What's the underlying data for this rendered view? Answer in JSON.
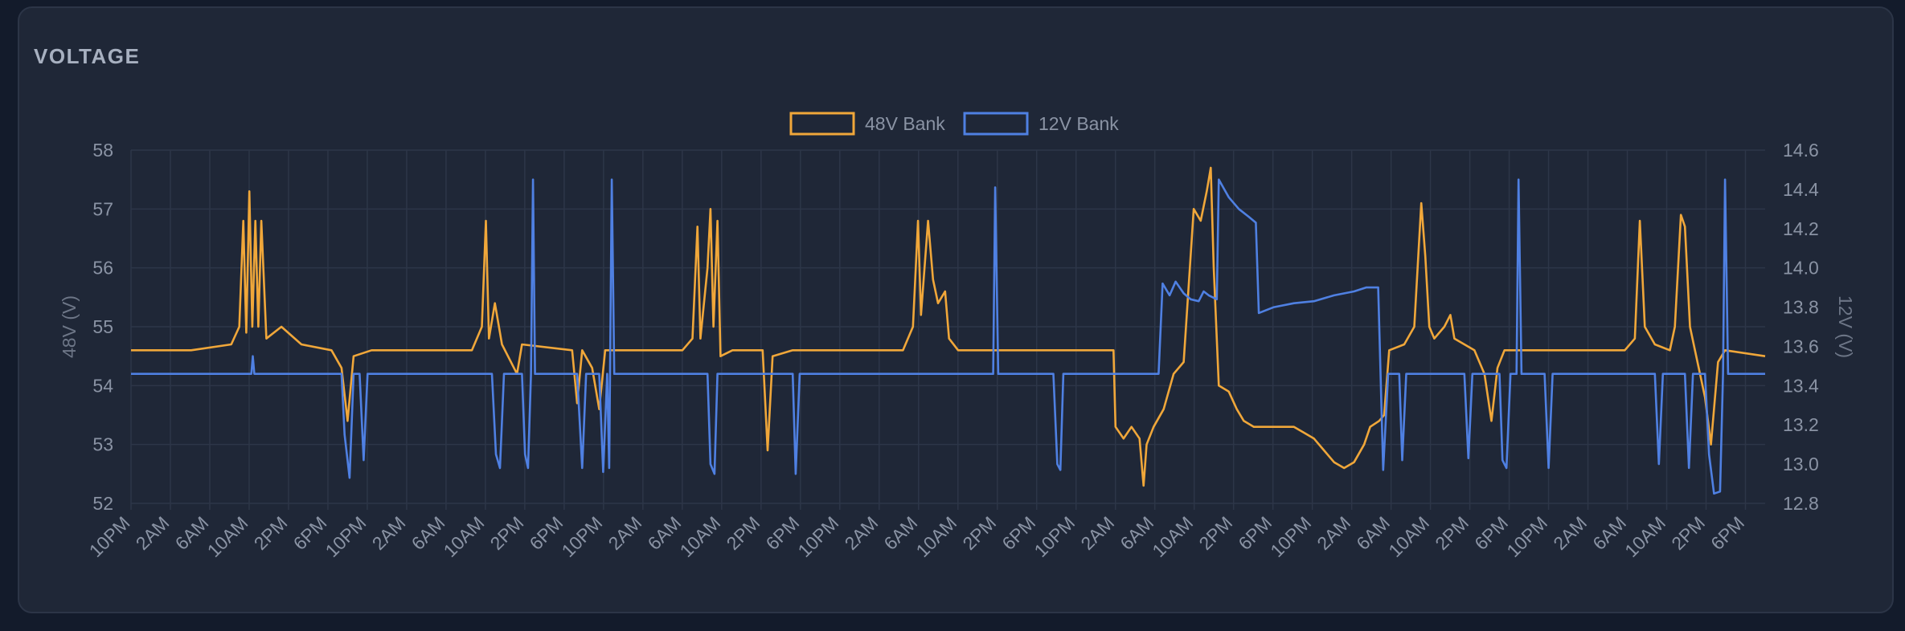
{
  "card": {
    "title": "VOLTAGE"
  },
  "chart_data": {
    "type": "line",
    "title": "VOLTAGE",
    "x_tick_labels": [
      "10PM",
      "2AM",
      "6AM",
      "10AM",
      "2PM",
      "6PM",
      "10PM",
      "2AM",
      "6AM",
      "10AM",
      "2PM",
      "6PM",
      "10PM",
      "2AM",
      "6AM",
      "10AM",
      "2PM",
      "6PM",
      "10PM",
      "2AM",
      "6AM",
      "10AM",
      "2PM",
      "6PM",
      "10PM",
      "2AM",
      "6AM",
      "10AM",
      "2PM",
      "6PM",
      "10PM",
      "2AM",
      "6AM",
      "10AM",
      "2PM",
      "6PM",
      "10PM",
      "2AM",
      "6AM",
      "10AM",
      "2PM",
      "6PM"
    ],
    "x_range_hours": [
      0,
      163
    ],
    "y_left": {
      "label": "48V (V)",
      "range": [
        52,
        58
      ],
      "ticks": [
        52,
        53,
        54,
        55,
        56,
        57,
        58
      ]
    },
    "y_right": {
      "label": "12V (V)",
      "range": [
        12.8,
        14.6
      ],
      "ticks": [
        12.8,
        13.0,
        13.2,
        13.4,
        13.6,
        13.8,
        14.0,
        14.2,
        14.4,
        14.6
      ]
    },
    "legend_position": "top-center",
    "grid": true,
    "series": [
      {
        "name": "48V Bank",
        "axis": "left",
        "color": "#f0a73a",
        "points": [
          [
            0,
            54.6
          ],
          [
            6,
            54.6
          ],
          [
            10,
            54.7
          ],
          [
            10.8,
            55.0
          ],
          [
            11.2,
            56.8
          ],
          [
            11.5,
            54.9
          ],
          [
            11.8,
            57.3
          ],
          [
            12.1,
            55.0
          ],
          [
            12.4,
            56.8
          ],
          [
            12.7,
            55.0
          ],
          [
            13,
            56.8
          ],
          [
            13.5,
            54.8
          ],
          [
            15,
            55.0
          ],
          [
            17,
            54.7
          ],
          [
            20,
            54.6
          ],
          [
            21,
            54.3
          ],
          [
            21.6,
            53.4
          ],
          [
            22.2,
            54.5
          ],
          [
            24,
            54.6
          ],
          [
            34,
            54.6
          ],
          [
            35,
            55.0
          ],
          [
            35.4,
            56.8
          ],
          [
            35.7,
            54.8
          ],
          [
            36.3,
            55.4
          ],
          [
            37,
            54.7
          ],
          [
            38.5,
            54.2
          ],
          [
            39,
            54.7
          ],
          [
            44,
            54.6
          ],
          [
            44.5,
            53.7
          ],
          [
            45,
            54.6
          ],
          [
            46,
            54.3
          ],
          [
            46.7,
            53.6
          ],
          [
            47.3,
            54.6
          ],
          [
            55,
            54.6
          ],
          [
            56,
            54.8
          ],
          [
            56.5,
            56.7
          ],
          [
            56.8,
            54.8
          ],
          [
            57.5,
            56.0
          ],
          [
            57.8,
            57.0
          ],
          [
            58.1,
            55.0
          ],
          [
            58.5,
            56.8
          ],
          [
            58.8,
            54.5
          ],
          [
            60,
            54.6
          ],
          [
            63,
            54.6
          ],
          [
            63.5,
            52.9
          ],
          [
            64,
            54.5
          ],
          [
            66,
            54.6
          ],
          [
            77,
            54.6
          ],
          [
            78,
            55.0
          ],
          [
            78.5,
            56.8
          ],
          [
            78.8,
            55.2
          ],
          [
            79.5,
            56.8
          ],
          [
            80,
            55.8
          ],
          [
            80.5,
            55.4
          ],
          [
            81.2,
            55.6
          ],
          [
            81.6,
            54.8
          ],
          [
            82.5,
            54.6
          ],
          [
            87,
            54.6
          ],
          [
            92,
            54.6
          ],
          [
            98,
            54.6
          ],
          [
            98.2,
            53.3
          ],
          [
            99,
            53.1
          ],
          [
            99.8,
            53.3
          ],
          [
            100.6,
            53.1
          ],
          [
            101,
            52.3
          ],
          [
            101.3,
            53.0
          ],
          [
            102,
            53.3
          ],
          [
            103,
            53.6
          ],
          [
            104,
            54.2
          ],
          [
            105,
            54.4
          ],
          [
            106,
            57.0
          ],
          [
            106.7,
            56.8
          ],
          [
            107.3,
            57.3
          ],
          [
            107.7,
            57.7
          ],
          [
            108,
            56.0
          ],
          [
            108.5,
            54.0
          ],
          [
            109.5,
            53.9
          ],
          [
            110.3,
            53.6
          ],
          [
            111,
            53.4
          ],
          [
            112,
            53.3
          ],
          [
            114,
            53.3
          ],
          [
            116,
            53.3
          ],
          [
            117,
            53.2
          ],
          [
            118,
            53.1
          ],
          [
            119,
            52.9
          ],
          [
            120,
            52.7
          ],
          [
            121,
            52.6
          ],
          [
            122,
            52.7
          ],
          [
            123,
            53.0
          ],
          [
            123.6,
            53.3
          ],
          [
            124.5,
            53.4
          ],
          [
            125,
            53.5
          ],
          [
            125.5,
            54.6
          ],
          [
            127,
            54.7
          ],
          [
            128,
            55.0
          ],
          [
            128.7,
            57.1
          ],
          [
            129.1,
            56.2
          ],
          [
            129.5,
            55.0
          ],
          [
            130,
            54.8
          ],
          [
            131,
            55.0
          ],
          [
            131.6,
            55.2
          ],
          [
            132,
            54.8
          ],
          [
            134,
            54.6
          ],
          [
            135,
            54.2
          ],
          [
            135.7,
            53.4
          ],
          [
            136.3,
            54.3
          ],
          [
            137,
            54.6
          ],
          [
            149,
            54.6
          ],
          [
            150,
            54.8
          ],
          [
            150.5,
            56.8
          ],
          [
            151,
            55.0
          ],
          [
            152,
            54.7
          ],
          [
            153.5,
            54.6
          ],
          [
            154,
            55.0
          ],
          [
            154.6,
            56.9
          ],
          [
            155,
            56.7
          ],
          [
            155.5,
            55.0
          ],
          [
            156,
            54.6
          ],
          [
            157,
            53.8
          ],
          [
            157.6,
            53.0
          ],
          [
            158.3,
            54.4
          ],
          [
            159,
            54.6
          ],
          [
            163,
            54.5
          ]
        ]
      },
      {
        "name": "12V Bank",
        "axis": "right",
        "color": "#4f80e2",
        "points": [
          [
            0,
            13.46
          ],
          [
            12,
            13.46
          ],
          [
            12.15,
            13.55
          ],
          [
            12.3,
            13.46
          ],
          [
            21,
            13.46
          ],
          [
            21.3,
            13.15
          ],
          [
            21.8,
            12.93
          ],
          [
            22.2,
            13.46
          ],
          [
            22.8,
            13.46
          ],
          [
            23.2,
            13.02
          ],
          [
            23.6,
            13.46
          ],
          [
            36,
            13.46
          ],
          [
            36.4,
            13.05
          ],
          [
            36.8,
            12.98
          ],
          [
            37.2,
            13.46
          ],
          [
            39,
            13.46
          ],
          [
            39.3,
            13.05
          ],
          [
            39.6,
            12.98
          ],
          [
            39.9,
            13.46
          ],
          [
            40.1,
            14.45
          ],
          [
            40.3,
            13.46
          ],
          [
            44.5,
            13.46
          ],
          [
            45,
            12.98
          ],
          [
            45.4,
            13.46
          ],
          [
            46.7,
            13.46
          ],
          [
            47.1,
            12.96
          ],
          [
            47.5,
            13.46
          ],
          [
            47.7,
            12.98
          ],
          [
            47.95,
            14.45
          ],
          [
            48.2,
            13.46
          ],
          [
            57.5,
            13.46
          ],
          [
            57.8,
            13.0
          ],
          [
            58.2,
            12.95
          ],
          [
            58.5,
            13.46
          ],
          [
            66,
            13.46
          ],
          [
            66.3,
            12.95
          ],
          [
            66.7,
            13.46
          ],
          [
            86,
            13.46
          ],
          [
            86.2,
            14.41
          ],
          [
            86.5,
            13.46
          ],
          [
            92,
            13.46
          ],
          [
            92.4,
            13.0
          ],
          [
            92.7,
            12.97
          ],
          [
            93,
            13.46
          ],
          [
            102.5,
            13.46
          ],
          [
            102.9,
            13.92
          ],
          [
            103.6,
            13.86
          ],
          [
            104.2,
            13.93
          ],
          [
            105,
            13.87
          ],
          [
            105.7,
            13.84
          ],
          [
            106.5,
            13.83
          ],
          [
            107,
            13.88
          ],
          [
            107.5,
            13.86
          ],
          [
            108.3,
            13.84
          ],
          [
            108.5,
            14.45
          ],
          [
            109.5,
            14.36
          ],
          [
            110.5,
            14.3
          ],
          [
            111.5,
            14.26
          ],
          [
            112.2,
            14.23
          ],
          [
            112.5,
            13.77
          ],
          [
            114,
            13.8
          ],
          [
            116,
            13.82
          ],
          [
            118,
            13.83
          ],
          [
            120,
            13.86
          ],
          [
            122,
            13.88
          ],
          [
            123.2,
            13.9
          ],
          [
            124.4,
            13.9
          ],
          [
            124.9,
            12.97
          ],
          [
            125.4,
            13.46
          ],
          [
            126.5,
            13.46
          ],
          [
            126.8,
            13.02
          ],
          [
            127.2,
            13.46
          ],
          [
            129,
            13.46
          ],
          [
            133,
            13.46
          ],
          [
            133.4,
            13.03
          ],
          [
            133.8,
            13.46
          ],
          [
            136.5,
            13.46
          ],
          [
            136.8,
            13.02
          ],
          [
            137.2,
            12.98
          ],
          [
            137.6,
            13.46
          ],
          [
            138.2,
            13.46
          ],
          [
            138.4,
            14.45
          ],
          [
            138.7,
            13.46
          ],
          [
            141,
            13.46
          ],
          [
            141.4,
            12.98
          ],
          [
            141.8,
            13.46
          ],
          [
            152,
            13.46
          ],
          [
            152.4,
            13.0
          ],
          [
            152.8,
            13.46
          ],
          [
            155,
            13.46
          ],
          [
            155.4,
            12.98
          ],
          [
            155.8,
            13.46
          ],
          [
            157,
            13.46
          ],
          [
            157.4,
            13.05
          ],
          [
            157.9,
            12.85
          ],
          [
            158.5,
            12.86
          ],
          [
            158.8,
            13.46
          ],
          [
            159,
            14.45
          ],
          [
            159.3,
            13.46
          ],
          [
            163,
            13.46
          ]
        ]
      }
    ]
  }
}
